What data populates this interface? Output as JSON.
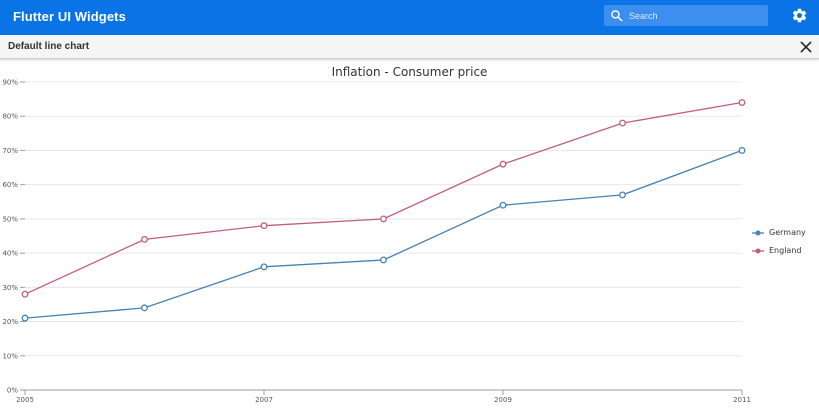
{
  "header": {
    "title": "Flutter UI Widgets",
    "search_placeholder": "Search",
    "search_value": "",
    "colors": {
      "app_bar": "#0a74e6",
      "search_box": "#3d8fef"
    }
  },
  "subheader": {
    "title": "Default line chart"
  },
  "chart_data": {
    "type": "line",
    "title": "Inflation - Consumer price",
    "x_tick_labels": [
      "2005",
      "2007",
      "2009",
      "2011"
    ],
    "y_tick_labels": [
      "0%",
      "10%",
      "20%",
      "30%",
      "40%",
      "50%",
      "60%",
      "70%",
      "80%",
      "90%"
    ],
    "xlim": [
      2005,
      2011
    ],
    "ylim": [
      0,
      90
    ],
    "x": [
      2005,
      2006,
      2007,
      2008,
      2009,
      2010,
      2011
    ],
    "series": [
      {
        "name": "Germany",
        "color": "#4682b4",
        "values": [
          21,
          24,
          36,
          38,
          54,
          57,
          70
        ]
      },
      {
        "name": "England",
        "color": "#bf5f7b",
        "values": [
          28,
          44,
          48,
          50,
          66,
          78,
          84
        ]
      }
    ],
    "grid": "horizontal",
    "legend_position": "right",
    "marker": "hollow-circle"
  }
}
